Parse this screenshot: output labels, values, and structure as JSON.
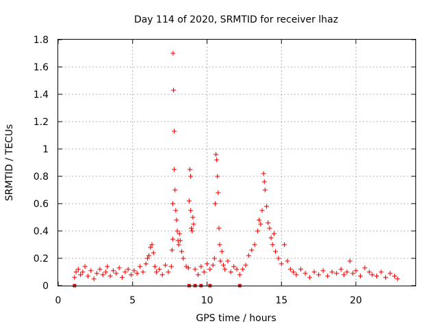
{
  "chart_data": {
    "type": "scatter",
    "title": "Day 114 of 2020, SRMTID for receiver lhaz",
    "xlabel": "GPS time / hours",
    "ylabel": "SRMTID / TECUs",
    "xlim": [
      0,
      24
    ],
    "ylim": [
      0,
      1.8
    ],
    "xticks": [
      0,
      5,
      10,
      15,
      20
    ],
    "xtick_labels": [
      "0",
      "5",
      "10",
      "15",
      "20"
    ],
    "yticks": [
      0,
      0.2,
      0.4,
      0.6,
      0.8,
      1.0,
      1.2,
      1.4,
      1.6,
      1.8
    ],
    "ytick_labels": [
      "0",
      "0.2",
      "0.4",
      "0.6",
      "0.8",
      "1",
      "1.2",
      "1.4",
      "1.6",
      "1.8"
    ],
    "grid": true,
    "marker": "plus",
    "color": "#ff0000",
    "series": [
      {
        "name": "SRMTID",
        "x": [
          1.1,
          1.2,
          1.35,
          1.5,
          1.65,
          1.8,
          2.0,
          2.2,
          2.4,
          2.6,
          2.8,
          3.0,
          3.2,
          3.3,
          3.5,
          3.7,
          3.9,
          4.1,
          4.3,
          4.5,
          4.7,
          4.9,
          5.1,
          5.3,
          5.5,
          5.7,
          5.9,
          6.0,
          6.1,
          6.2,
          6.3,
          6.4,
          6.5,
          6.6,
          6.8,
          7.0,
          7.2,
          7.4,
          7.6,
          7.65,
          7.7,
          7.7,
          7.72,
          7.75,
          7.8,
          7.8,
          7.85,
          7.9,
          7.95,
          8.0,
          8.05,
          8.1,
          8.15,
          8.2,
          8.3,
          8.4,
          8.6,
          8.75,
          8.8,
          8.85,
          8.9,
          8.9,
          8.95,
          9.0,
          9.05,
          9.1,
          9.2,
          9.4,
          9.6,
          9.8,
          10.0,
          10.2,
          10.4,
          10.5,
          10.55,
          10.6,
          10.65,
          10.7,
          10.75,
          10.8,
          10.85,
          10.9,
          11.0,
          11.1,
          11.2,
          11.4,
          11.6,
          11.8,
          12.0,
          12.2,
          12.4,
          12.6,
          12.8,
          13.0,
          13.2,
          13.4,
          13.5,
          13.6,
          13.7,
          13.8,
          13.85,
          13.9,
          14.0,
          14.1,
          14.2,
          14.3,
          14.4,
          14.5,
          14.6,
          14.8,
          15.0,
          15.2,
          15.4,
          15.6,
          15.8,
          16.0,
          16.3,
          16.6,
          16.9,
          17.2,
          17.5,
          17.8,
          18.1,
          18.4,
          18.7,
          19.0,
          19.2,
          19.4,
          19.6,
          19.8,
          20.0,
          20.3,
          20.6,
          20.9,
          21.1,
          21.4,
          21.7,
          22.0,
          22.3,
          22.6,
          22.8
        ],
        "y": [
          0.06,
          0.1,
          0.12,
          0.08,
          0.1,
          0.14,
          0.07,
          0.11,
          0.05,
          0.09,
          0.12,
          0.08,
          0.1,
          0.14,
          0.07,
          0.11,
          0.09,
          0.13,
          0.06,
          0.1,
          0.12,
          0.08,
          0.11,
          0.09,
          0.14,
          0.1,
          0.16,
          0.2,
          0.22,
          0.28,
          0.3,
          0.24,
          0.14,
          0.1,
          0.12,
          0.08,
          0.15,
          0.1,
          0.14,
          0.26,
          0.34,
          0.6,
          1.7,
          1.43,
          1.13,
          0.85,
          0.7,
          0.55,
          0.48,
          0.4,
          0.33,
          0.3,
          0.38,
          0.33,
          0.25,
          0.2,
          0.14,
          0.13,
          0.62,
          0.85,
          0.8,
          0.55,
          0.42,
          0.4,
          0.5,
          0.45,
          0.12,
          0.08,
          0.14,
          0.1,
          0.16,
          0.12,
          0.15,
          0.2,
          0.6,
          0.96,
          0.92,
          0.8,
          0.68,
          0.42,
          0.3,
          0.18,
          0.25,
          0.15,
          0.12,
          0.18,
          0.1,
          0.14,
          0.12,
          0.08,
          0.12,
          0.15,
          0.22,
          0.26,
          0.3,
          0.4,
          0.48,
          0.45,
          0.55,
          0.82,
          0.76,
          0.7,
          0.58,
          0.46,
          0.42,
          0.35,
          0.3,
          0.38,
          0.25,
          0.2,
          0.16,
          0.3,
          0.18,
          0.12,
          0.1,
          0.08,
          0.12,
          0.09,
          0.06,
          0.1,
          0.08,
          0.11,
          0.07,
          0.1,
          0.09,
          0.12,
          0.08,
          0.1,
          0.18,
          0.09,
          0.11,
          0.07,
          0.13,
          0.1,
          0.08,
          0.07,
          0.1,
          0.06,
          0.09,
          0.07,
          0.05
        ],
        "zero_x": [
          1.1,
          8.8,
          9.2,
          9.6,
          10.2,
          12.2
        ]
      }
    ]
  }
}
